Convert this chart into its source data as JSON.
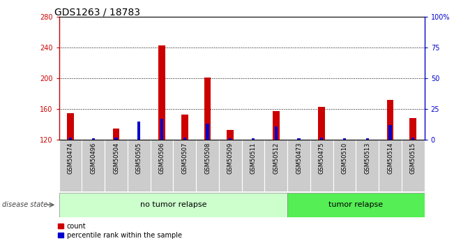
{
  "title": "GDS1263 / 18783",
  "samples": [
    "GSM50474",
    "GSM50496",
    "GSM50504",
    "GSM50505",
    "GSM50506",
    "GSM50507",
    "GSM50508",
    "GSM50509",
    "GSM50511",
    "GSM50512",
    "GSM50473",
    "GSM50475",
    "GSM50510",
    "GSM50513",
    "GSM50514",
    "GSM50515"
  ],
  "count_values": [
    155,
    120,
    135,
    120,
    243,
    153,
    201,
    133,
    120,
    157,
    120,
    163,
    120,
    120,
    172,
    148
  ],
  "percentile_values": [
    2,
    1,
    2,
    15,
    17,
    2,
    13,
    1,
    1,
    11,
    1,
    2,
    1,
    1,
    12,
    2
  ],
  "baseline": 120,
  "ylim_left": [
    120,
    280
  ],
  "ylim_right": [
    0,
    100
  ],
  "yticks_left": [
    120,
    160,
    200,
    240,
    280
  ],
  "yticks_right": [
    0,
    25,
    50,
    75,
    100
  ],
  "ytick_labels_right": [
    "0",
    "25",
    "50",
    "75",
    "100%"
  ],
  "bar_color_red": "#cc0000",
  "bar_color_blue": "#0000cc",
  "no_tumor_count": 10,
  "tumor_count": 6,
  "no_tumor_label": "no tumor relapse",
  "tumor_label": "tumor relapse",
  "disease_state_label": "disease state",
  "legend_count": "count",
  "legend_percentile": "percentile rank within the sample",
  "bg_no_tumor": "#ccffcc",
  "bg_tumor": "#55ee55",
  "bg_sample_label": "#cccccc",
  "title_fontsize": 10,
  "tick_fontsize": 7,
  "label_fontsize": 8,
  "sample_fontsize": 6
}
